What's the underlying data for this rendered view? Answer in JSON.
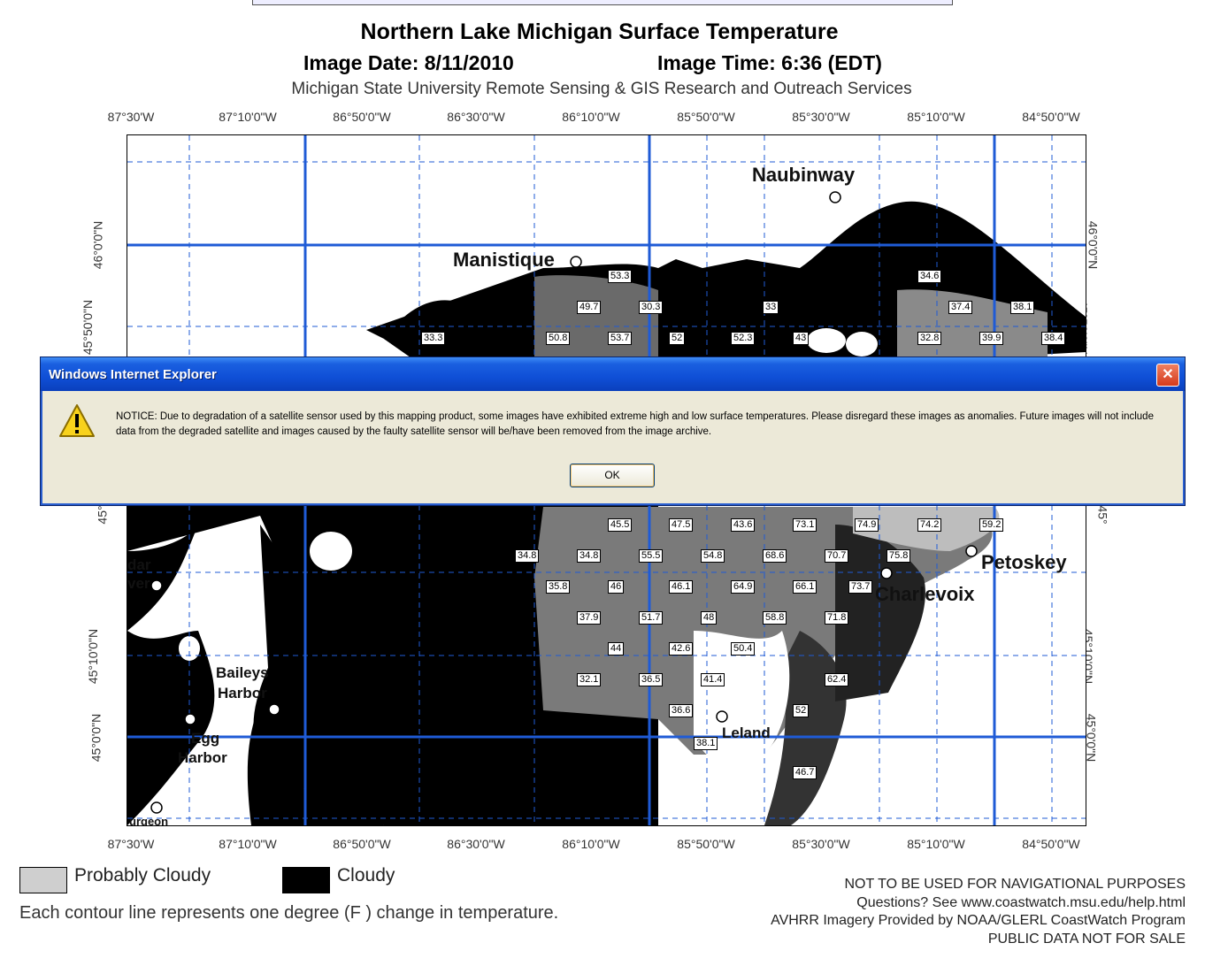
{
  "map": {
    "title": "Northern Lake Michigan Surface Temperature",
    "image_date": "Image Date: 8/11/2010",
    "image_time": "Image Time: 6:36 (EDT)",
    "credit": "Michigan State University Remote Sensing & GIS Research and Outreach Services",
    "longitude_labels": [
      "87°30'W",
      "87°10'0\"W",
      "86°50'0\"W",
      "86°30'0\"W",
      "86°10'0\"W",
      "85°50'0\"W",
      "85°30'0\"W",
      "85°10'0\"W",
      "84°50'0\"W"
    ],
    "latitude_labels": [
      "46°0'0\"N",
      "45°50'0\"N",
      "45°10'0\"N",
      "45°0'0\"N"
    ],
    "partial_latitude_label": "45°",
    "cities": {
      "naubinway": "Naubinway",
      "manistique": "Manistique",
      "petoskey": "Petoskey",
      "charlevoix": "Charlevoix",
      "cedar_river_1": "dar",
      "cedar_river_2": "ver",
      "baileys_harbor_1": "Baileys",
      "baileys_harbor_2": "Harbor",
      "egg_harbor_1": "Egg",
      "egg_harbor_2": "Harbor",
      "leland": "Leland",
      "sturgeon": "urgeon"
    },
    "temperature_labels": [
      "53.3",
      "49.7",
      "30.3",
      "33",
      "34.6",
      "37.4",
      "38.1",
      "33.3",
      "50.8",
      "53.7",
      "52",
      "52.3",
      "43",
      "32.8",
      "39.9",
      "38.4",
      "45.5",
      "47.5",
      "43.6",
      "73.1",
      "74.9",
      "74.2",
      "59.2",
      "34.8",
      "34.8",
      "55.5",
      "54.8",
      "68.6",
      "70.7",
      "75.8",
      "35.8",
      "46",
      "46.1",
      "64.9",
      "66.1",
      "73.7",
      "37.9",
      "51.7",
      "48",
      "58.8",
      "71.8",
      "44",
      "42.6",
      "50.4",
      "32.1",
      "36.5",
      "41.4",
      "62.4",
      "36.6",
      "52",
      "38.1",
      "46.7"
    ]
  },
  "legend": {
    "probably_cloudy": "Probably Cloudy",
    "cloudy": "Cloudy",
    "contour_note": "Each contour line represents one degree (F  ) change in temperature."
  },
  "disclaimer": {
    "line1": "NOT TO BE USED FOR NAVIGATIONAL PURPOSES",
    "line2": "Questions?  See www.coastwatch.msu.edu/help.html",
    "line3": "AVHRR Imagery Provided by NOAA/GLERL CoastWatch Program",
    "line4": "PUBLIC DATA NOT FOR SALE"
  },
  "dialog": {
    "title": "Windows Internet Explorer",
    "close_glyph": "✕",
    "message": "NOTICE: Due to degradation of a satellite sensor used by this mapping product, some images have exhibited extreme high and low surface temperatures.  Please disregard these images as anomalies.  Future images will not include data from the degraded satellite and images caused by the faulty satellite sensor will be/have been removed from the image archive.",
    "ok_label": "OK",
    "icon": "warning-icon"
  },
  "colors": {
    "grid_blue": "#1f5bd6",
    "titlebar": "#0f4fd6",
    "cloudy": "#000000",
    "probably_cloudy": "#cfcfcf"
  }
}
